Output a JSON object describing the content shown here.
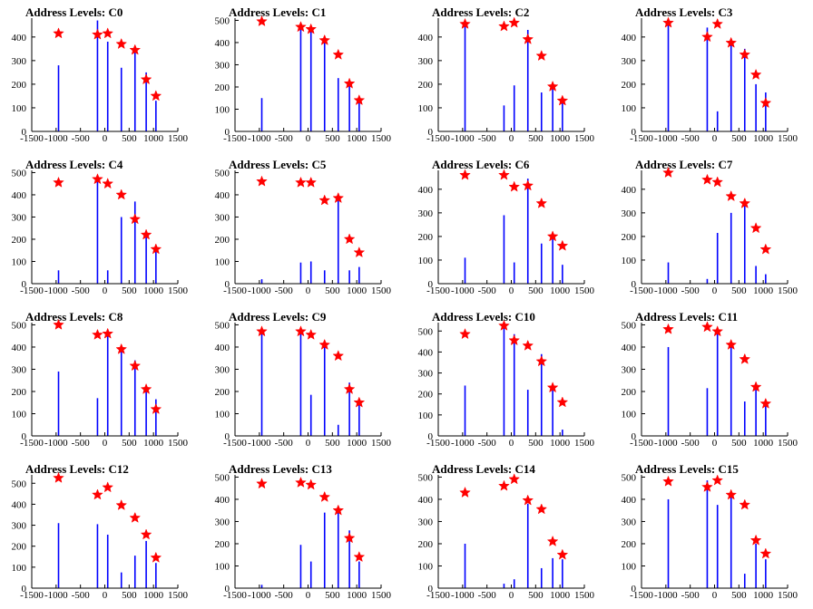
{
  "figure": {
    "x_ticks": [
      -1500,
      -1000,
      -500,
      0,
      500,
      1000,
      1500
    ],
    "xlim": [
      -1500,
      1500
    ],
    "colors": {
      "histogram": "#0000ff",
      "peak_marker": "#ff0000",
      "axis": "#000000"
    },
    "marker_shape": "star"
  },
  "chart_data": [
    {
      "type": "bar",
      "title": "Address Levels: C0",
      "ylim": [
        0,
        480
      ],
      "y_ticks": [
        0,
        100,
        200,
        300,
        400
      ],
      "peaks": [
        {
          "x": -950,
          "y": 415
        },
        {
          "x": -150,
          "y": 410
        },
        {
          "x": 60,
          "y": 415
        },
        {
          "x": 340,
          "y": 370
        },
        {
          "x": 620,
          "y": 345
        },
        {
          "x": 850,
          "y": 220
        },
        {
          "x": 1050,
          "y": 150
        }
      ],
      "bars": [
        {
          "x": -950,
          "y": 280
        },
        {
          "x": -150,
          "y": 470
        },
        {
          "x": 60,
          "y": 380
        },
        {
          "x": 340,
          "y": 270
        },
        {
          "x": 620,
          "y": 350
        },
        {
          "x": 850,
          "y": 250
        },
        {
          "x": 1050,
          "y": 130
        }
      ]
    },
    {
      "type": "bar",
      "title": "Address Levels: C1",
      "ylim": [
        0,
        510
      ],
      "y_ticks": [
        0,
        100,
        200,
        300,
        400,
        500
      ],
      "peaks": [
        {
          "x": -950,
          "y": 495
        },
        {
          "x": -150,
          "y": 470
        },
        {
          "x": 60,
          "y": 460
        },
        {
          "x": 340,
          "y": 410
        },
        {
          "x": 620,
          "y": 345
        },
        {
          "x": 850,
          "y": 215
        },
        {
          "x": 1050,
          "y": 140
        }
      ],
      "bars": [
        {
          "x": -950,
          "y": 150
        },
        {
          "x": -150,
          "y": 470
        },
        {
          "x": 60,
          "y": 460
        },
        {
          "x": 340,
          "y": 410
        },
        {
          "x": 620,
          "y": 240
        },
        {
          "x": 850,
          "y": 215
        },
        {
          "x": 1050,
          "y": 140
        }
      ]
    },
    {
      "type": "bar",
      "title": "Address Levels: C2",
      "ylim": [
        0,
        480
      ],
      "y_ticks": [
        0,
        100,
        200,
        300,
        400
      ],
      "peaks": [
        {
          "x": -950,
          "y": 455
        },
        {
          "x": -150,
          "y": 445
        },
        {
          "x": 60,
          "y": 460
        },
        {
          "x": 340,
          "y": 390
        },
        {
          "x": 620,
          "y": 320
        },
        {
          "x": 850,
          "y": 190
        },
        {
          "x": 1050,
          "y": 130
        }
      ],
      "bars": [
        {
          "x": -950,
          "y": 455
        },
        {
          "x": -150,
          "y": 110
        },
        {
          "x": 60,
          "y": 195
        },
        {
          "x": 340,
          "y": 430
        },
        {
          "x": 620,
          "y": 165
        },
        {
          "x": 850,
          "y": 190
        },
        {
          "x": 1050,
          "y": 130
        }
      ]
    },
    {
      "type": "bar",
      "title": "Address Levels: C3",
      "ylim": [
        0,
        480
      ],
      "y_ticks": [
        0,
        100,
        200,
        300,
        400
      ],
      "peaks": [
        {
          "x": -950,
          "y": 460
        },
        {
          "x": -150,
          "y": 400
        },
        {
          "x": 60,
          "y": 455
        },
        {
          "x": 340,
          "y": 375
        },
        {
          "x": 620,
          "y": 325
        },
        {
          "x": 850,
          "y": 240
        },
        {
          "x": 1050,
          "y": 120
        }
      ],
      "bars": [
        {
          "x": -950,
          "y": 460
        },
        {
          "x": -150,
          "y": 440
        },
        {
          "x": 60,
          "y": 85
        },
        {
          "x": 340,
          "y": 375
        },
        {
          "x": 620,
          "y": 350
        },
        {
          "x": 850,
          "y": 200
        },
        {
          "x": 1050,
          "y": 165
        }
      ]
    },
    {
      "type": "bar",
      "title": "Address Levels: C4",
      "ylim": [
        0,
        510
      ],
      "y_ticks": [
        0,
        100,
        200,
        300,
        400,
        500
      ],
      "peaks": [
        {
          "x": -950,
          "y": 455
        },
        {
          "x": -150,
          "y": 470
        },
        {
          "x": 60,
          "y": 450
        },
        {
          "x": 340,
          "y": 400
        },
        {
          "x": 620,
          "y": 290
        },
        {
          "x": 850,
          "y": 220
        },
        {
          "x": 1050,
          "y": 155
        }
      ],
      "bars": [
        {
          "x": -950,
          "y": 60
        },
        {
          "x": -150,
          "y": 470
        },
        {
          "x": 60,
          "y": 60
        },
        {
          "x": 340,
          "y": 300
        },
        {
          "x": 620,
          "y": 370
        },
        {
          "x": 850,
          "y": 220
        },
        {
          "x": 1050,
          "y": 155
        }
      ]
    },
    {
      "type": "bar",
      "title": "Address Levels: C5",
      "ylim": [
        0,
        510
      ],
      "y_ticks": [
        0,
        100,
        200,
        300,
        400,
        500
      ],
      "peaks": [
        {
          "x": -950,
          "y": 460
        },
        {
          "x": -150,
          "y": 455
        },
        {
          "x": 60,
          "y": 455
        },
        {
          "x": 340,
          "y": 375
        },
        {
          "x": 620,
          "y": 385
        },
        {
          "x": 850,
          "y": 200
        },
        {
          "x": 1050,
          "y": 140
        }
      ],
      "bars": [
        {
          "x": -950,
          "y": 20
        },
        {
          "x": -150,
          "y": 95
        },
        {
          "x": 60,
          "y": 100
        },
        {
          "x": 340,
          "y": 60
        },
        {
          "x": 620,
          "y": 385
        },
        {
          "x": 850,
          "y": 60
        },
        {
          "x": 1050,
          "y": 75
        }
      ]
    },
    {
      "type": "bar",
      "title": "Address Levels: C6",
      "ylim": [
        0,
        480
      ],
      "y_ticks": [
        0,
        100,
        200,
        300,
        400
      ],
      "peaks": [
        {
          "x": -950,
          "y": 460
        },
        {
          "x": -150,
          "y": 460
        },
        {
          "x": 60,
          "y": 410
        },
        {
          "x": 340,
          "y": 415
        },
        {
          "x": 620,
          "y": 340
        },
        {
          "x": 850,
          "y": 200
        },
        {
          "x": 1050,
          "y": 160
        }
      ],
      "bars": [
        {
          "x": -950,
          "y": 110
        },
        {
          "x": -150,
          "y": 290
        },
        {
          "x": 60,
          "y": 90
        },
        {
          "x": 340,
          "y": 445
        },
        {
          "x": 620,
          "y": 170
        },
        {
          "x": 850,
          "y": 200
        },
        {
          "x": 1050,
          "y": 80
        }
      ]
    },
    {
      "type": "bar",
      "title": "Address Levels: C7",
      "ylim": [
        0,
        480
      ],
      "y_ticks": [
        0,
        100,
        200,
        300,
        400
      ],
      "peaks": [
        {
          "x": -950,
          "y": 470
        },
        {
          "x": -150,
          "y": 440
        },
        {
          "x": 60,
          "y": 430
        },
        {
          "x": 340,
          "y": 370
        },
        {
          "x": 620,
          "y": 340
        },
        {
          "x": 850,
          "y": 235
        },
        {
          "x": 1050,
          "y": 145
        }
      ],
      "bars": [
        {
          "x": -950,
          "y": 90
        },
        {
          "x": -150,
          "y": 20
        },
        {
          "x": 60,
          "y": 215
        },
        {
          "x": 340,
          "y": 300
        },
        {
          "x": 620,
          "y": 340
        },
        {
          "x": 850,
          "y": 75
        },
        {
          "x": 1050,
          "y": 40
        }
      ]
    },
    {
      "type": "bar",
      "title": "Address Levels: C8",
      "ylim": [
        0,
        510
      ],
      "y_ticks": [
        0,
        100,
        200,
        300,
        400,
        500
      ],
      "peaks": [
        {
          "x": -950,
          "y": 500
        },
        {
          "x": -150,
          "y": 455
        },
        {
          "x": 60,
          "y": 460
        },
        {
          "x": 340,
          "y": 390
        },
        {
          "x": 620,
          "y": 315
        },
        {
          "x": 850,
          "y": 210
        },
        {
          "x": 1050,
          "y": 120
        }
      ],
      "bars": [
        {
          "x": -950,
          "y": 290
        },
        {
          "x": -150,
          "y": 170
        },
        {
          "x": 60,
          "y": 460
        },
        {
          "x": 340,
          "y": 390
        },
        {
          "x": 620,
          "y": 340
        },
        {
          "x": 850,
          "y": 210
        },
        {
          "x": 1050,
          "y": 165
        }
      ]
    },
    {
      "type": "bar",
      "title": "Address Levels: C9",
      "ylim": [
        0,
        510
      ],
      "y_ticks": [
        0,
        100,
        200,
        300,
        400,
        500
      ],
      "peaks": [
        {
          "x": -950,
          "y": 470
        },
        {
          "x": -150,
          "y": 470
        },
        {
          "x": 60,
          "y": 455
        },
        {
          "x": 340,
          "y": 410
        },
        {
          "x": 620,
          "y": 360
        },
        {
          "x": 850,
          "y": 210
        },
        {
          "x": 1050,
          "y": 150
        }
      ],
      "bars": [
        {
          "x": -950,
          "y": 470
        },
        {
          "x": -150,
          "y": 470
        },
        {
          "x": 60,
          "y": 185
        },
        {
          "x": 340,
          "y": 410
        },
        {
          "x": 620,
          "y": 50
        },
        {
          "x": 850,
          "y": 240
        },
        {
          "x": 1050,
          "y": 150
        }
      ]
    },
    {
      "type": "bar",
      "title": "Address Levels: C10",
      "ylim": [
        0,
        540
      ],
      "y_ticks": [
        0,
        100,
        200,
        300,
        400,
        500
      ],
      "peaks": [
        {
          "x": -950,
          "y": 485
        },
        {
          "x": -150,
          "y": 525
        },
        {
          "x": 60,
          "y": 455
        },
        {
          "x": 340,
          "y": 430
        },
        {
          "x": 620,
          "y": 355
        },
        {
          "x": 850,
          "y": 230
        },
        {
          "x": 1050,
          "y": 160
        }
      ],
      "bars": [
        {
          "x": -950,
          "y": 240
        },
        {
          "x": -150,
          "y": 525
        },
        {
          "x": 60,
          "y": 485
        },
        {
          "x": 340,
          "y": 220
        },
        {
          "x": 620,
          "y": 390
        },
        {
          "x": 850,
          "y": 230
        },
        {
          "x": 1050,
          "y": 30
        }
      ]
    },
    {
      "type": "bar",
      "title": "Address Levels: C11",
      "ylim": [
        0,
        510
      ],
      "y_ticks": [
        0,
        100,
        200,
        300,
        400,
        500
      ],
      "peaks": [
        {
          "x": -950,
          "y": 480
        },
        {
          "x": -150,
          "y": 490
        },
        {
          "x": 60,
          "y": 470
        },
        {
          "x": 340,
          "y": 410
        },
        {
          "x": 620,
          "y": 345
        },
        {
          "x": 850,
          "y": 220
        },
        {
          "x": 1050,
          "y": 145
        }
      ],
      "bars": [
        {
          "x": -950,
          "y": 400
        },
        {
          "x": -150,
          "y": 215
        },
        {
          "x": 60,
          "y": 470
        },
        {
          "x": 340,
          "y": 410
        },
        {
          "x": 620,
          "y": 155
        },
        {
          "x": 850,
          "y": 220
        },
        {
          "x": 1050,
          "y": 145
        }
      ]
    },
    {
      "type": "bar",
      "title": "Address Levels: C12",
      "ylim": [
        0,
        540
      ],
      "y_ticks": [
        0,
        100,
        200,
        300,
        400,
        500
      ],
      "peaks": [
        {
          "x": -950,
          "y": 525
        },
        {
          "x": -150,
          "y": 445
        },
        {
          "x": 60,
          "y": 480
        },
        {
          "x": 340,
          "y": 395
        },
        {
          "x": 620,
          "y": 335
        },
        {
          "x": 850,
          "y": 255
        },
        {
          "x": 1050,
          "y": 145
        }
      ],
      "bars": [
        {
          "x": -950,
          "y": 310
        },
        {
          "x": -150,
          "y": 305
        },
        {
          "x": 60,
          "y": 255
        },
        {
          "x": 340,
          "y": 75
        },
        {
          "x": 620,
          "y": 155
        },
        {
          "x": 850,
          "y": 225
        },
        {
          "x": 1050,
          "y": 120
        }
      ]
    },
    {
      "type": "bar",
      "title": "Address Levels: C13",
      "ylim": [
        0,
        510
      ],
      "y_ticks": [
        0,
        100,
        200,
        300,
        400,
        500
      ],
      "peaks": [
        {
          "x": -950,
          "y": 470
        },
        {
          "x": -150,
          "y": 475
        },
        {
          "x": 60,
          "y": 465
        },
        {
          "x": 340,
          "y": 410
        },
        {
          "x": 620,
          "y": 350
        },
        {
          "x": 850,
          "y": 225
        },
        {
          "x": 1050,
          "y": 140
        }
      ],
      "bars": [
        {
          "x": -950,
          "y": 15
        },
        {
          "x": -150,
          "y": 195
        },
        {
          "x": 60,
          "y": 120
        },
        {
          "x": 340,
          "y": 340
        },
        {
          "x": 620,
          "y": 345
        },
        {
          "x": 850,
          "y": 260
        },
        {
          "x": 1050,
          "y": 120
        }
      ]
    },
    {
      "type": "bar",
      "title": "Address Levels: C14",
      "ylim": [
        0,
        510
      ],
      "y_ticks": [
        0,
        100,
        200,
        300,
        400,
        500
      ],
      "peaks": [
        {
          "x": -950,
          "y": 430
        },
        {
          "x": -150,
          "y": 460
        },
        {
          "x": 60,
          "y": 490
        },
        {
          "x": 340,
          "y": 395
        },
        {
          "x": 620,
          "y": 355
        },
        {
          "x": 850,
          "y": 210
        },
        {
          "x": 1050,
          "y": 150
        }
      ],
      "bars": [
        {
          "x": -950,
          "y": 200
        },
        {
          "x": -150,
          "y": 20
        },
        {
          "x": 60,
          "y": 40
        },
        {
          "x": 340,
          "y": 380
        },
        {
          "x": 620,
          "y": 90
        },
        {
          "x": 850,
          "y": 135
        },
        {
          "x": 1050,
          "y": 130
        }
      ]
    },
    {
      "type": "bar",
      "title": "Address Levels: C15",
      "ylim": [
        0,
        510
      ],
      "y_ticks": [
        0,
        100,
        200,
        300,
        400,
        500
      ],
      "peaks": [
        {
          "x": -950,
          "y": 480
        },
        {
          "x": -150,
          "y": 455
        },
        {
          "x": 60,
          "y": 485
        },
        {
          "x": 340,
          "y": 420
        },
        {
          "x": 620,
          "y": 375
        },
        {
          "x": 850,
          "y": 215
        },
        {
          "x": 1050,
          "y": 155
        }
      ],
      "bars": [
        {
          "x": -950,
          "y": 400
        },
        {
          "x": -150,
          "y": 485
        },
        {
          "x": 60,
          "y": 375
        },
        {
          "x": 340,
          "y": 415
        },
        {
          "x": 620,
          "y": 65
        },
        {
          "x": 850,
          "y": 200
        },
        {
          "x": 1050,
          "y": 130
        }
      ]
    }
  ]
}
